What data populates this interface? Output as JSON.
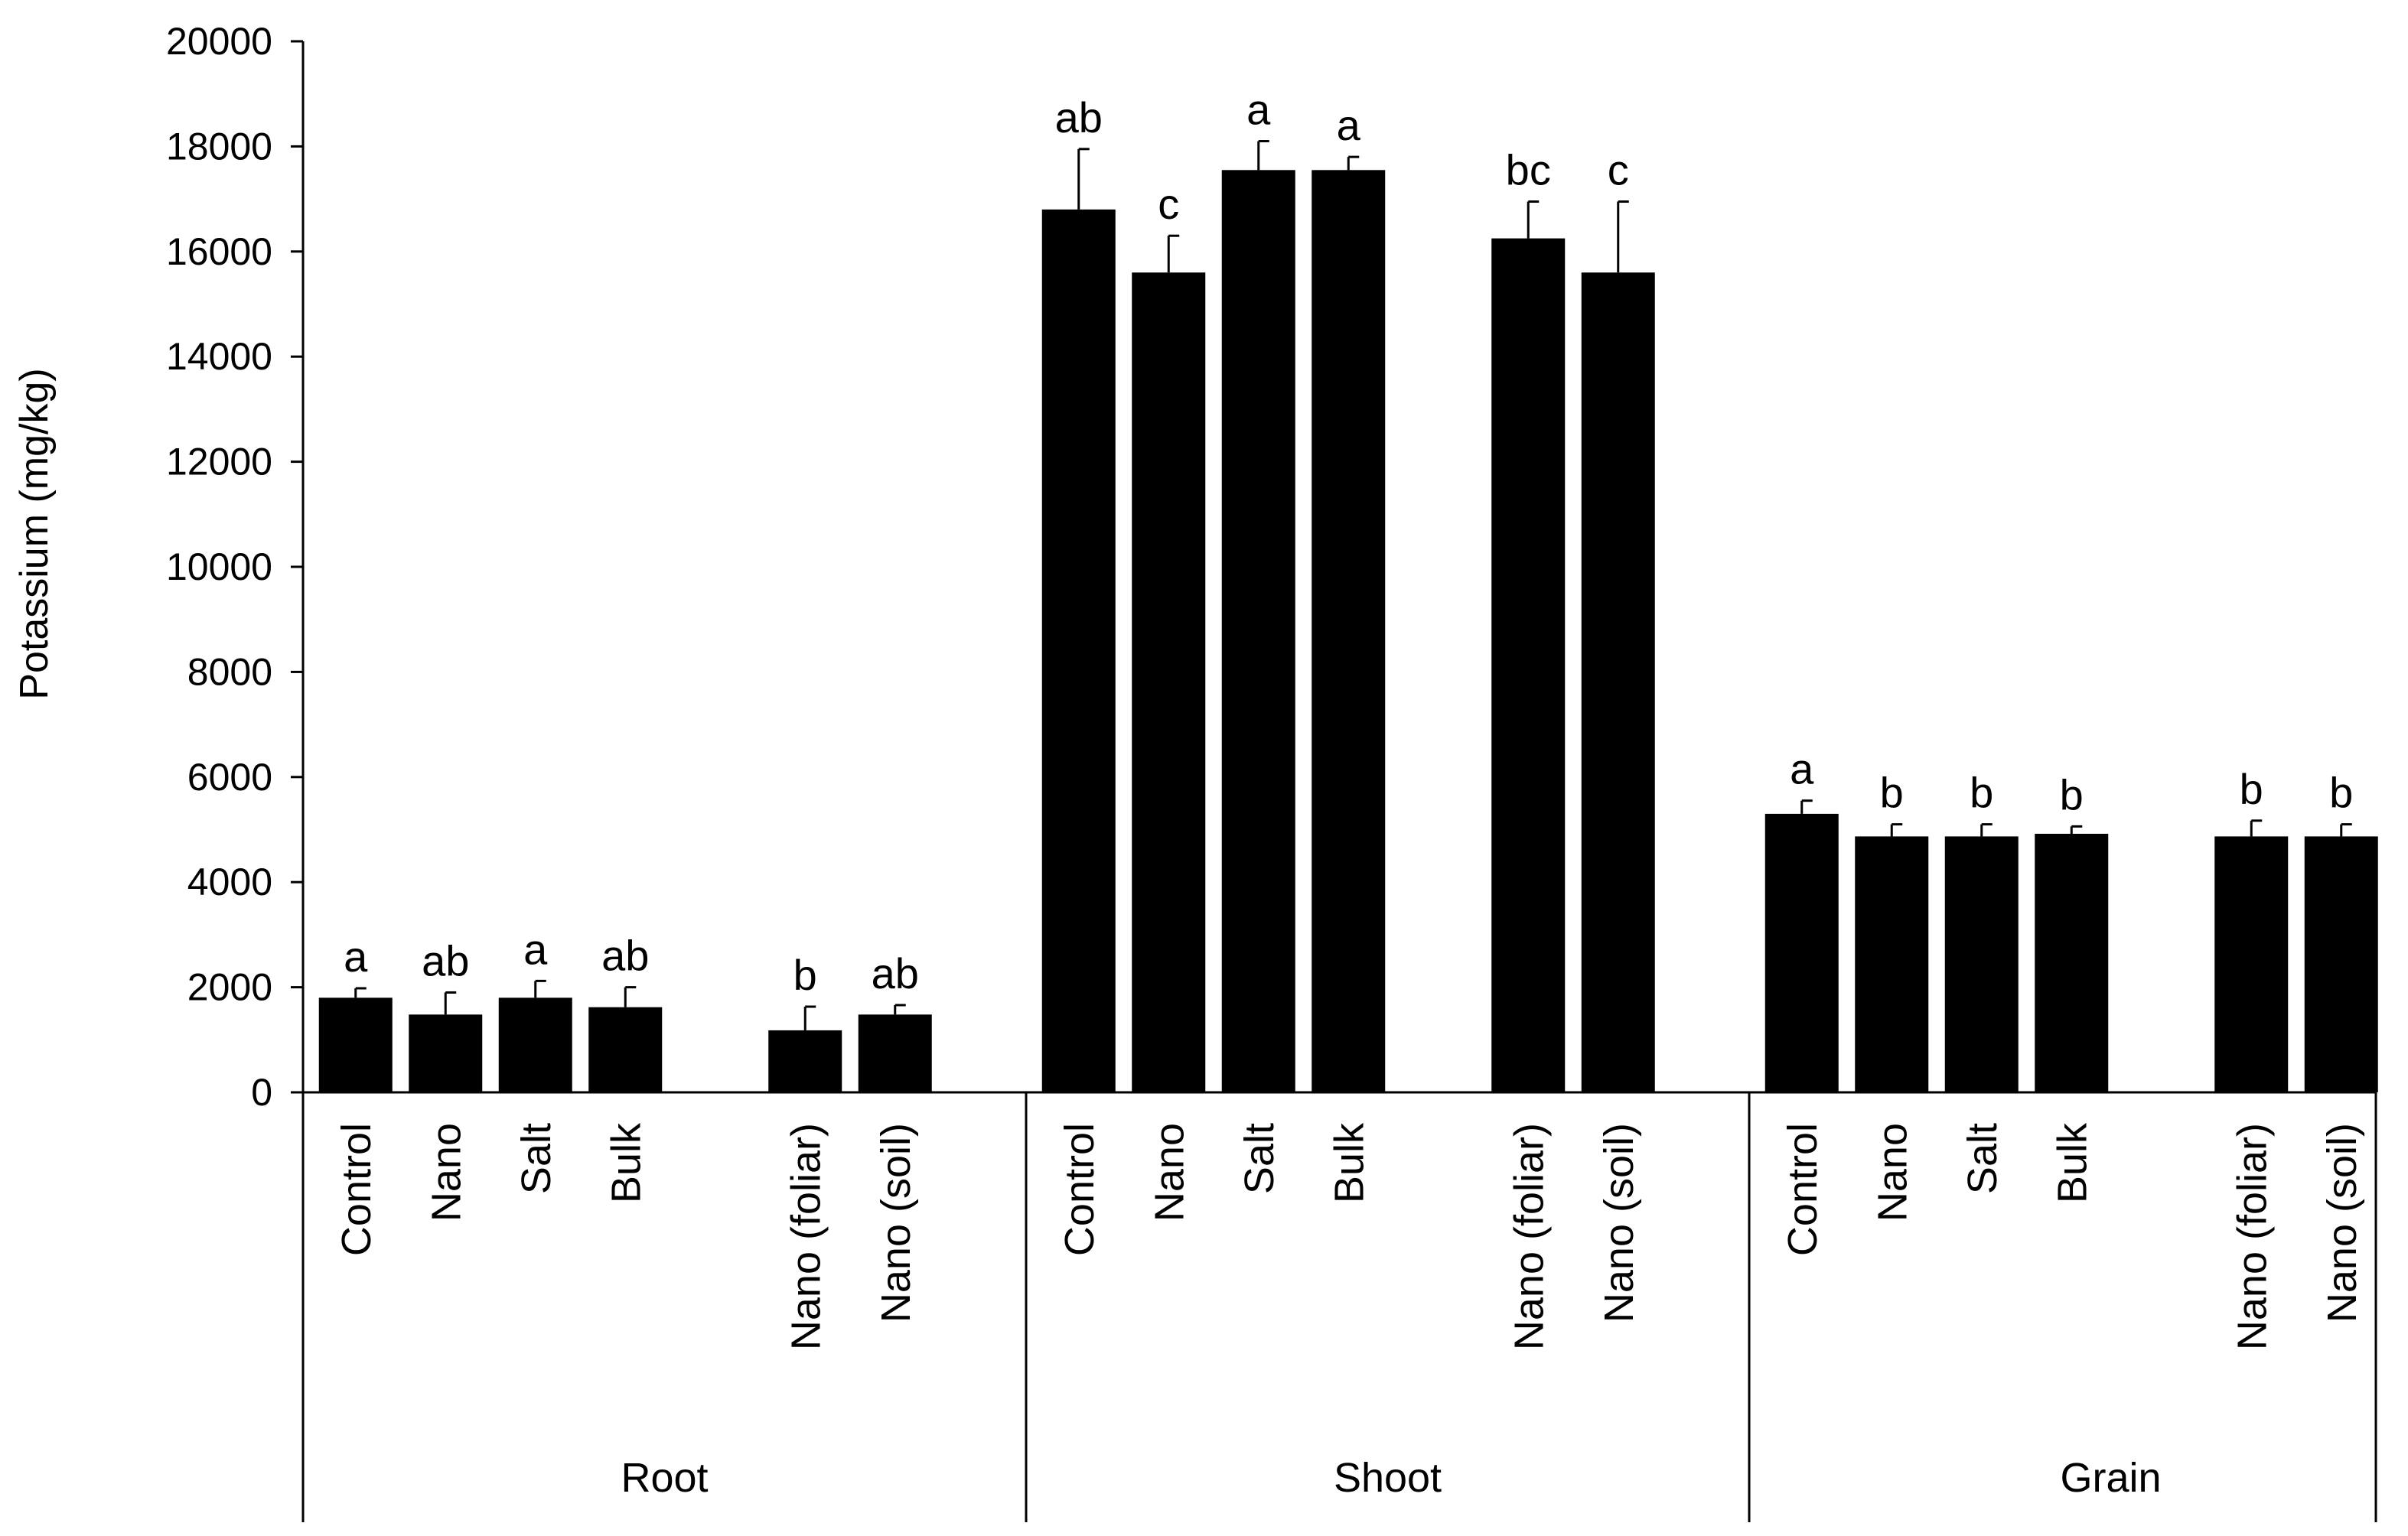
{
  "chart_data": {
    "type": "bar",
    "ylabel": "Potassium (mg/kg)",
    "ylim": [
      0,
      20000
    ],
    "yticks": [
      0,
      2000,
      4000,
      6000,
      8000,
      10000,
      12000,
      14000,
      16000,
      18000,
      20000
    ],
    "grid": false,
    "legend": "none",
    "bar_color": "#000000",
    "groups": [
      {
        "name": "Root",
        "bars": [
          {
            "category": "Control",
            "value": 1800,
            "error": 180,
            "letter": "a"
          },
          {
            "category": "Nano",
            "value": 1480,
            "error": 420,
            "letter": "ab"
          },
          {
            "category": "Salt",
            "value": 1800,
            "error": 320,
            "letter": "a"
          },
          {
            "category": "Bulk",
            "value": 1620,
            "error": 380,
            "letter": "ab"
          },
          {
            "category": "Nano (foliar)",
            "value": 1180,
            "error": 450,
            "letter": "b"
          },
          {
            "category": "Nano (soil)",
            "value": 1480,
            "error": 180,
            "letter": "ab"
          }
        ]
      },
      {
        "name": "Shoot",
        "bars": [
          {
            "category": "Control",
            "value": 16800,
            "error": 1150,
            "letter": "ab"
          },
          {
            "category": "Nano",
            "value": 15600,
            "error": 700,
            "letter": "c"
          },
          {
            "category": "Salt",
            "value": 17550,
            "error": 550,
            "letter": "a"
          },
          {
            "category": "Bulk",
            "value": 17550,
            "error": 250,
            "letter": "a"
          },
          {
            "category": "Nano (foliar)",
            "value": 16250,
            "error": 700,
            "letter": "bc"
          },
          {
            "category": "Nano (soil)",
            "value": 15600,
            "error": 1350,
            "letter": "c"
          }
        ]
      },
      {
        "name": "Grain",
        "bars": [
          {
            "category": "Control",
            "value": 5300,
            "error": 250,
            "letter": "a"
          },
          {
            "category": "Nano",
            "value": 4870,
            "error": 230,
            "letter": "b"
          },
          {
            "category": "Salt",
            "value": 4870,
            "error": 230,
            "letter": "b"
          },
          {
            "category": "Bulk",
            "value": 4920,
            "error": 140,
            "letter": "b"
          },
          {
            "category": "Nano (foliar)",
            "value": 4870,
            "error": 300,
            "letter": "b"
          },
          {
            "category": "Nano (soil)",
            "value": 4870,
            "error": 230,
            "letter": "b"
          }
        ]
      }
    ]
  }
}
